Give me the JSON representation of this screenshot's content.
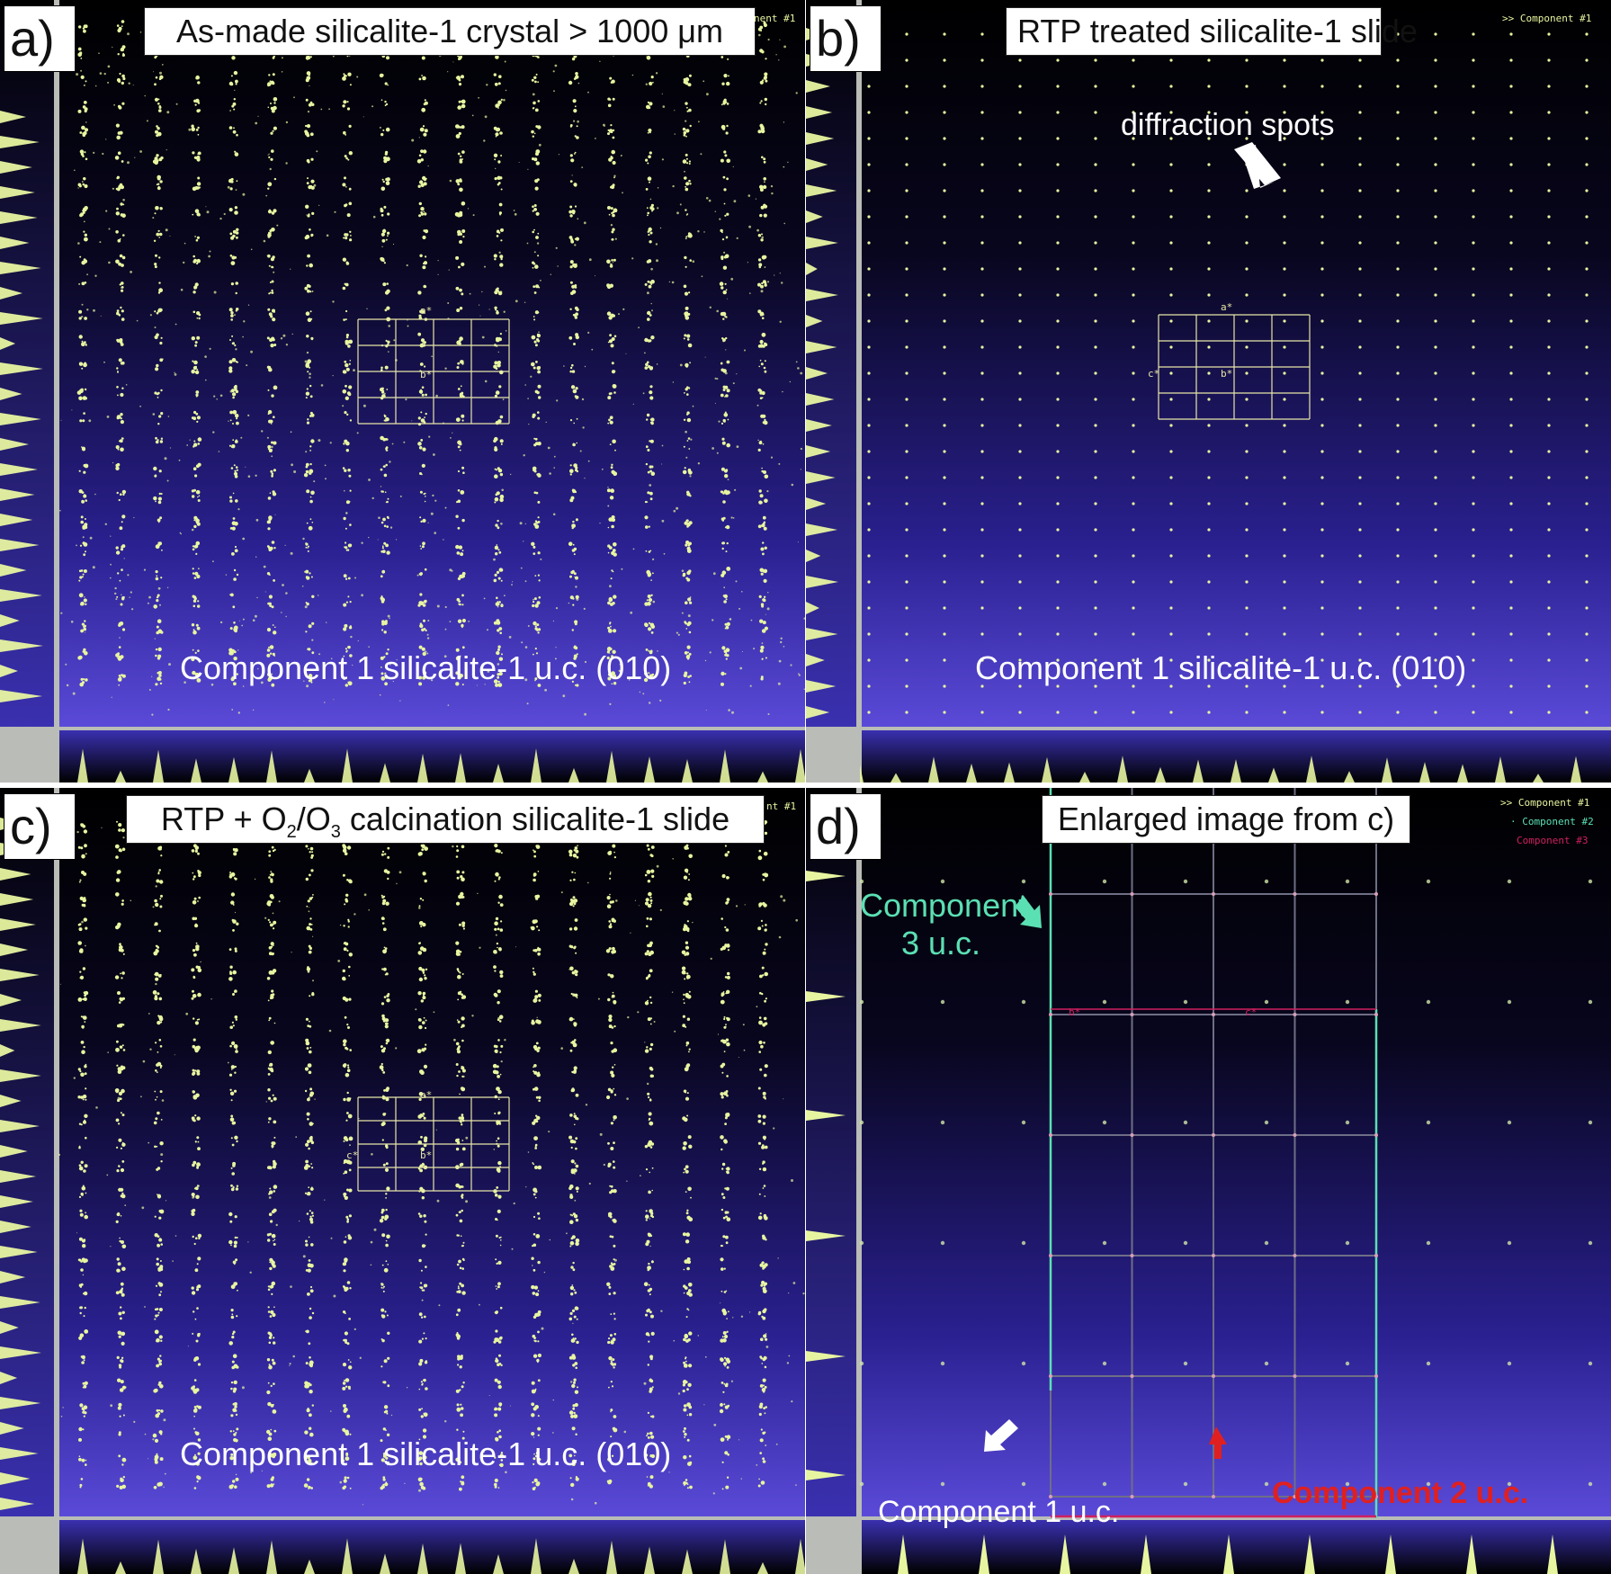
{
  "panels": [
    {
      "letter": "a)",
      "title": "As-made silicalite-1 crystal > 1000 μm",
      "caption": "Component 1 silicalite-1 u.c. (010)",
      "overlay": "nent #1"
    },
    {
      "letter": "b)",
      "title": "RTP treated silicalite-1 slide",
      "caption": "Component 1 silicalite-1 u.c. (010)",
      "overlay": ">> Component #1",
      "annotation": "diffraction spots"
    },
    {
      "letter": "c)",
      "title_parts": [
        "RTP + O",
        "2",
        "/O",
        "3",
        " calcination silicalite-1 slide"
      ],
      "caption": "Component 1 silicalite-1 u.c. (010)",
      "overlay": "nt #1"
    },
    {
      "letter": "d)",
      "title": "Enlarged image from c)",
      "legend": [
        ">> Component #1",
        "· Component #2",
        "Component #3"
      ],
      "labels": {
        "component3": "Component\n3 u.c.",
        "component1": "Component 1 u.c.",
        "component2": "Component 2 u.c."
      }
    }
  ],
  "axis_labels": {
    "a_star": "a*",
    "b_star": "b*",
    "c_star": "c*"
  },
  "colors": {
    "background_top": "#000000",
    "background_bottom": "#4a3cc8",
    "spots": "#e8f5a0",
    "grid": "#e8e6a8",
    "teal": "#5be0b3",
    "red": "#e02020",
    "grey": "#b9bcb7"
  }
}
